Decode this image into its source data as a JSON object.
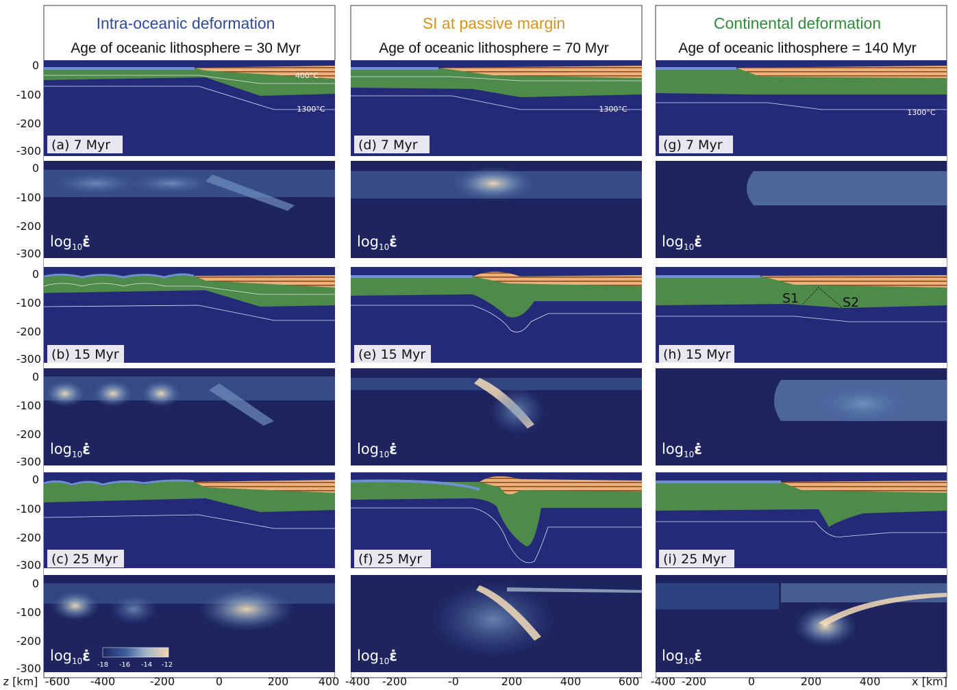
{
  "columns": [
    {
      "title": "Intra-oceanic deformation",
      "title_color": "#2e4a9c",
      "subtitle": "Age of oceanic lithosphere = 30 Myr",
      "x_ticks": [
        "-600",
        "-400",
        "-200",
        "0",
        "200",
        "400"
      ],
      "panels": [
        {
          "label": "(a) 7 Myr",
          "iso_labels": [
            "400°C",
            "1300°C"
          ]
        },
        {
          "label": "(b) 15 Myr",
          "iso_labels": []
        },
        {
          "label": "(c) 25 Myr",
          "iso_labels": []
        }
      ]
    },
    {
      "title": "SI at passive margin",
      "title_color": "#d4931c",
      "subtitle": "Age of oceanic lithosphere = 70 Myr",
      "x_ticks": [
        "-400",
        "-200",
        "-0",
        "200",
        "400",
        "600"
      ],
      "panels": [
        {
          "label": "(d) 7 Myr",
          "iso_labels": [
            "1300°C"
          ]
        },
        {
          "label": "(e) 15 Myr",
          "iso_labels": []
        },
        {
          "label": "(f) 25 Myr",
          "iso_labels": []
        }
      ]
    },
    {
      "title": "Continental deformation",
      "title_color": "#2f8a3a",
      "subtitle": "Age of oceanic lithosphere = 140 Myr",
      "x_ticks": [
        "-400",
        "-200",
        "0",
        "200",
        "400"
      ],
      "panels": [
        {
          "label": "(g) 7 Myr",
          "iso_labels": [
            "1300°C"
          ]
        },
        {
          "label": "(h) 15 Myr",
          "iso_labels": [
            "S1",
            "S2"
          ]
        },
        {
          "label": "(i) 25 Myr",
          "iso_labels": []
        }
      ]
    }
  ],
  "y_ticks": [
    "0",
    "-100",
    "-200",
    "-300"
  ],
  "strain_label_base": "log",
  "strain_label_sub": "10",
  "strain_label_symbol": "ε̇",
  "colorbar_ticks": [
    "-18",
    "-16",
    "-14",
    "-12"
  ],
  "z_axis_label": "z [km]",
  "x_axis_label": "x [km]",
  "colors": {
    "mantle": "#242a78",
    "strain_bg": "#1e2460",
    "lithosphere": "#4e8a4a",
    "crust": "#e7a15e",
    "crust_dark": "#8a4a22",
    "ocean_crust": "#6f8fd1",
    "isotherm": "#dfe6f2",
    "strain_hot": "#f3dcb7",
    "strain_mid": "#5f83b6"
  }
}
